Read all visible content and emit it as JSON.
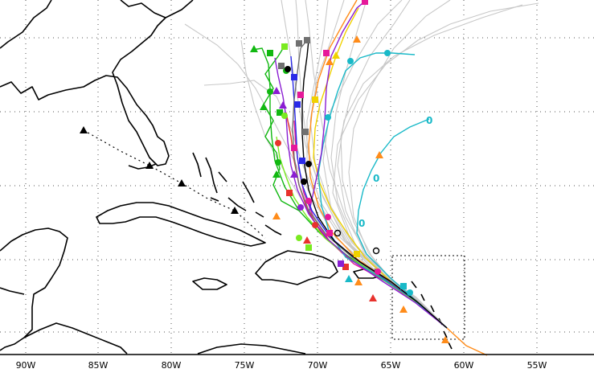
{
  "map": {
    "colors": {
      "ensemble": "#c8c8c8",
      "magenta": "#e6199a",
      "red": "#e8322d",
      "orange": "#ff8c1a",
      "yellow": "#f0d200",
      "green": "#11b811",
      "lime": "#7aea20",
      "cyan": "#19b9c8",
      "purple": "#8a1ed2",
      "blue": "#2a2ae8",
      "gray": "#707070",
      "black": "#000000"
    },
    "lon_labels": [
      "90W",
      "85W",
      "80W",
      "75W",
      "70W",
      "65W",
      "60W",
      "55W"
    ]
  }
}
